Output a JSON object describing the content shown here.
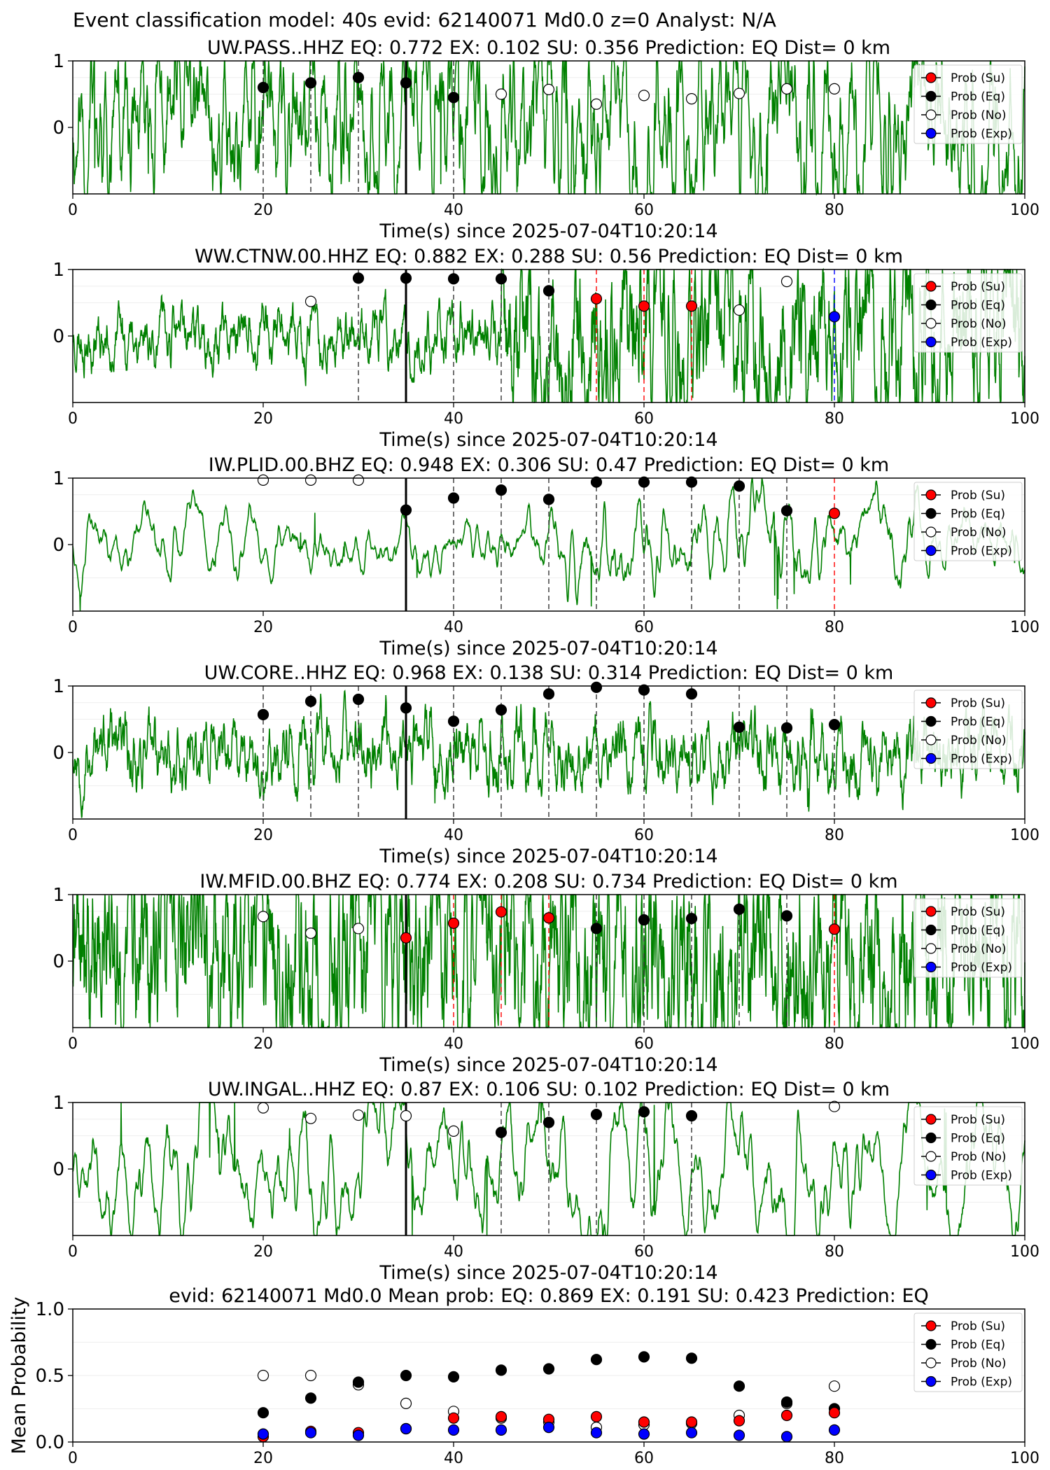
{
  "figure": {
    "suptitle": "Event classification model: 40s evid: 62140071 Md0.0 z=0 Analyst: N/A"
  },
  "legend": {
    "entries": [
      {
        "label": "Prob (Su)",
        "color": "#ff0000",
        "fill": true
      },
      {
        "label": "Prob (Eq)",
        "color": "#000000",
        "fill": true
      },
      {
        "label": "Prob (No)",
        "color": "#ffffff",
        "fill": false
      },
      {
        "label": "Prob (Exp)",
        "color": "#0000ff",
        "fill": true
      }
    ],
    "placement": "top-right"
  },
  "colors": {
    "waveform": "#008000",
    "su": "#ff0000",
    "eq": "#000000",
    "no": "#ffffff",
    "exp": "#0000ff",
    "origin_line": "#000000"
  },
  "chart_data": [
    {
      "type": "line",
      "title": "UW.PASS..HHZ   EQ: 0.772  EX: 0.102  SU: 0.356   Prediction: EQ    Dist= 0 km",
      "xlabel": "Time(s) since 2025-07-04T10:20:14",
      "ylabel": "",
      "xlim": [
        0,
        100
      ],
      "ylim": [
        -1,
        1
      ],
      "xticks": [
        "0",
        "20",
        "40",
        "60",
        "80",
        "100"
      ],
      "yticks": [
        "0",
        "1"
      ],
      "waveform": {
        "seed": 11,
        "base": 0.35,
        "smooth": 0.55,
        "late_amp": 0.55
      },
      "origin_time": 35,
      "points": [
        {
          "x": 20,
          "y": 0.6,
          "cls": "eq",
          "line": "eq"
        },
        {
          "x": 25,
          "y": 0.67,
          "cls": "eq",
          "line": "eq"
        },
        {
          "x": 30,
          "y": 0.75,
          "cls": "eq",
          "line": "eq"
        },
        {
          "x": 35,
          "y": 0.67,
          "cls": "eq",
          "line": "eq"
        },
        {
          "x": 40,
          "y": 0.45,
          "cls": "eq",
          "line": "eq"
        },
        {
          "x": 45,
          "y": 0.5,
          "cls": "no",
          "line": ""
        },
        {
          "x": 50,
          "y": 0.57,
          "cls": "no",
          "line": ""
        },
        {
          "x": 55,
          "y": 0.35,
          "cls": "no",
          "line": ""
        },
        {
          "x": 60,
          "y": 0.48,
          "cls": "no",
          "line": ""
        },
        {
          "x": 65,
          "y": 0.43,
          "cls": "no",
          "line": ""
        },
        {
          "x": 70,
          "y": 0.51,
          "cls": "no",
          "line": ""
        },
        {
          "x": 75,
          "y": 0.58,
          "cls": "no",
          "line": ""
        },
        {
          "x": 80,
          "y": 0.58,
          "cls": "no",
          "line": ""
        }
      ]
    },
    {
      "type": "line",
      "title": "WW.CTNW.00.HHZ   EQ: 0.882  EX: 0.288  SU: 0.56   Prediction: EQ    Dist= 0 km",
      "xlabel": "Time(s) since 2025-07-04T10:20:14",
      "ylabel": "",
      "xlim": [
        0,
        100
      ],
      "ylim": [
        -1,
        1
      ],
      "xticks": [
        "0",
        "20",
        "40",
        "60",
        "80",
        "100"
      ],
      "yticks": [
        "0",
        "1"
      ],
      "waveform": {
        "seed": 23,
        "base": 0.1,
        "smooth": 0.25,
        "late_amp": 0.35
      },
      "origin_time": 35,
      "points": [
        {
          "x": 25,
          "y": 0.52,
          "cls": "no",
          "line": ""
        },
        {
          "x": 30,
          "y": 0.87,
          "cls": "eq",
          "line": "eq"
        },
        {
          "x": 35,
          "y": 0.87,
          "cls": "eq",
          "line": "eq"
        },
        {
          "x": 40,
          "y": 0.86,
          "cls": "eq",
          "line": "eq"
        },
        {
          "x": 45,
          "y": 0.86,
          "cls": "eq",
          "line": "eq"
        },
        {
          "x": 50,
          "y": 0.68,
          "cls": "eq",
          "line": "eq"
        },
        {
          "x": 55,
          "y": 0.56,
          "cls": "su",
          "line": "su"
        },
        {
          "x": 60,
          "y": 0.45,
          "cls": "su",
          "line": "su"
        },
        {
          "x": 65,
          "y": 0.45,
          "cls": "su",
          "line": "su"
        },
        {
          "x": 70,
          "y": 0.39,
          "cls": "no",
          "line": ""
        },
        {
          "x": 75,
          "y": 0.82,
          "cls": "no",
          "line": ""
        },
        {
          "x": 80,
          "y": 0.29,
          "cls": "exp",
          "line": "exp"
        }
      ]
    },
    {
      "type": "line",
      "title": "IW.PLID.00.BHZ   EQ: 0.948  EX: 0.306  SU: 0.47   Prediction: EQ    Dist= 0 km",
      "xlabel": "Time(s) since 2025-07-04T10:20:14",
      "ylabel": "",
      "xlim": [
        0,
        100
      ],
      "ylim": [
        -1,
        1
      ],
      "xticks": [
        "0",
        "20",
        "40",
        "60",
        "80",
        "100"
      ],
      "yticks": [
        "0",
        "1"
      ],
      "waveform": {
        "seed": 37,
        "base": 0.18,
        "smooth": 0.9,
        "late_amp": 0.2
      },
      "origin_time": 35,
      "points": [
        {
          "x": 20,
          "y": 0.97,
          "cls": "no",
          "line": ""
        },
        {
          "x": 25,
          "y": 0.97,
          "cls": "no",
          "line": ""
        },
        {
          "x": 30,
          "y": 0.97,
          "cls": "no",
          "line": ""
        },
        {
          "x": 35,
          "y": 0.52,
          "cls": "eq",
          "line": "eq"
        },
        {
          "x": 40,
          "y": 0.7,
          "cls": "eq",
          "line": "eq"
        },
        {
          "x": 45,
          "y": 0.82,
          "cls": "eq",
          "line": "eq"
        },
        {
          "x": 50,
          "y": 0.68,
          "cls": "eq",
          "line": "eq"
        },
        {
          "x": 55,
          "y": 0.94,
          "cls": "eq",
          "line": "eq"
        },
        {
          "x": 60,
          "y": 0.94,
          "cls": "eq",
          "line": "eq"
        },
        {
          "x": 65,
          "y": 0.94,
          "cls": "eq",
          "line": "eq"
        },
        {
          "x": 70,
          "y": 0.88,
          "cls": "eq",
          "line": "eq"
        },
        {
          "x": 75,
          "y": 0.51,
          "cls": "eq",
          "line": "eq"
        },
        {
          "x": 80,
          "y": 0.47,
          "cls": "su",
          "line": "su"
        }
      ]
    },
    {
      "type": "line",
      "title": "UW.CORE..HHZ   EQ: 0.968  EX: 0.138  SU: 0.314   Prediction: EQ    Dist= 0 km",
      "xlabel": "Time(s) since 2025-07-04T10:20:14",
      "ylabel": "",
      "xlim": [
        0,
        100
      ],
      "ylim": [
        -1,
        1
      ],
      "xticks": [
        "0",
        "20",
        "40",
        "60",
        "80",
        "100"
      ],
      "yticks": [
        "0",
        "1"
      ],
      "waveform": {
        "seed": 53,
        "base": 0.13,
        "smooth": 0.3,
        "late_amp": 0.25
      },
      "origin_time": 35,
      "points": [
        {
          "x": 20,
          "y": 0.57,
          "cls": "eq",
          "line": "eq"
        },
        {
          "x": 25,
          "y": 0.77,
          "cls": "eq",
          "line": "eq"
        },
        {
          "x": 30,
          "y": 0.8,
          "cls": "eq",
          "line": "eq"
        },
        {
          "x": 35,
          "y": 0.67,
          "cls": "eq",
          "line": "eq"
        },
        {
          "x": 40,
          "y": 0.47,
          "cls": "eq",
          "line": "eq"
        },
        {
          "x": 45,
          "y": 0.64,
          "cls": "eq",
          "line": "eq"
        },
        {
          "x": 50,
          "y": 0.88,
          "cls": "eq",
          "line": "eq"
        },
        {
          "x": 55,
          "y": 0.98,
          "cls": "eq",
          "line": "eq"
        },
        {
          "x": 60,
          "y": 0.94,
          "cls": "eq",
          "line": "eq"
        },
        {
          "x": 65,
          "y": 0.88,
          "cls": "eq",
          "line": "eq"
        },
        {
          "x": 70,
          "y": 0.38,
          "cls": "eq",
          "line": "eq"
        },
        {
          "x": 75,
          "y": 0.37,
          "cls": "eq",
          "line": "eq"
        },
        {
          "x": 80,
          "y": 0.42,
          "cls": "eq",
          "line": "eq"
        }
      ]
    },
    {
      "type": "line",
      "title": "IW.MFID.00.BHZ   EQ: 0.774  EX: 0.208  SU: 0.734   Prediction: EQ    Dist= 0 km",
      "xlabel": "Time(s) since 2025-07-04T10:20:14",
      "ylabel": "",
      "xlim": [
        0,
        100
      ],
      "ylim": [
        -1,
        1
      ],
      "xticks": [
        "0",
        "20",
        "40",
        "60",
        "80",
        "100"
      ],
      "yticks": [
        "0",
        "1"
      ],
      "waveform": {
        "seed": 71,
        "base": 0.35,
        "smooth": 0.15,
        "late_amp": 0.3
      },
      "origin_time": 35,
      "points": [
        {
          "x": 20,
          "y": 0.67,
          "cls": "no",
          "line": ""
        },
        {
          "x": 25,
          "y": 0.42,
          "cls": "no",
          "line": ""
        },
        {
          "x": 30,
          "y": 0.49,
          "cls": "no",
          "line": ""
        },
        {
          "x": 35,
          "y": 0.35,
          "cls": "su",
          "line": "su"
        },
        {
          "x": 40,
          "y": 0.57,
          "cls": "su",
          "line": "su"
        },
        {
          "x": 45,
          "y": 0.74,
          "cls": "su",
          "line": "su"
        },
        {
          "x": 50,
          "y": 0.65,
          "cls": "su",
          "line": "su"
        },
        {
          "x": 55,
          "y": 0.49,
          "cls": "eq",
          "line": "eq"
        },
        {
          "x": 60,
          "y": 0.62,
          "cls": "eq",
          "line": "eq"
        },
        {
          "x": 65,
          "y": 0.64,
          "cls": "eq",
          "line": "eq"
        },
        {
          "x": 70,
          "y": 0.78,
          "cls": "eq",
          "line": "eq"
        },
        {
          "x": 75,
          "y": 0.68,
          "cls": "eq",
          "line": "eq"
        },
        {
          "x": 80,
          "y": 0.48,
          "cls": "su",
          "line": "su"
        }
      ]
    },
    {
      "type": "line",
      "title": "UW.INGAL..HHZ   EQ: 0.87  EX: 0.106  SU: 0.102   Prediction: EQ    Dist= 0 km",
      "xlabel": "Time(s) since 2025-07-04T10:20:14",
      "ylabel": "",
      "xlim": [
        0,
        100
      ],
      "ylim": [
        -1,
        1
      ],
      "xticks": [
        "0",
        "20",
        "40",
        "60",
        "80",
        "100"
      ],
      "yticks": [
        "0",
        "1"
      ],
      "waveform": {
        "seed": 89,
        "base": 0.5,
        "smooth": 0.93,
        "late_amp": 0.1
      },
      "origin_time": 35,
      "points": [
        {
          "x": 20,
          "y": 0.92,
          "cls": "no",
          "line": ""
        },
        {
          "x": 25,
          "y": 0.76,
          "cls": "no",
          "line": ""
        },
        {
          "x": 30,
          "y": 0.81,
          "cls": "no",
          "line": ""
        },
        {
          "x": 35,
          "y": 0.8,
          "cls": "no",
          "line": ""
        },
        {
          "x": 40,
          "y": 0.57,
          "cls": "no",
          "line": ""
        },
        {
          "x": 45,
          "y": 0.55,
          "cls": "eq",
          "line": "eq"
        },
        {
          "x": 50,
          "y": 0.7,
          "cls": "eq",
          "line": "eq"
        },
        {
          "x": 55,
          "y": 0.82,
          "cls": "eq",
          "line": "eq"
        },
        {
          "x": 60,
          "y": 0.86,
          "cls": "eq",
          "line": "eq"
        },
        {
          "x": 65,
          "y": 0.8,
          "cls": "eq",
          "line": "eq"
        },
        {
          "x": 80,
          "y": 0.94,
          "cls": "no",
          "line": ""
        }
      ]
    },
    {
      "type": "scatter",
      "title": "evid: 62140071  Md0.0   Mean prob:   EQ: 0.869  EX: 0.191  SU: 0.423   Prediction: EQ",
      "xlabel": "",
      "ylabel": "Mean Probability",
      "xlim": [
        0,
        100
      ],
      "ylim": [
        0,
        1
      ],
      "xticks": [
        "0",
        "20",
        "40",
        "60",
        "80",
        "100"
      ],
      "yticks": [
        "0.0",
        "0.5",
        "1.0"
      ],
      "x": [
        20,
        25,
        30,
        35,
        40,
        45,
        50,
        55,
        60,
        65,
        70,
        75,
        80
      ],
      "series": [
        {
          "name": "Prob (No)",
          "cls": "no",
          "values": [
            0.5,
            0.5,
            0.43,
            0.29,
            0.23,
            0.18,
            0.15,
            0.11,
            0.13,
            0.14,
            0.2,
            0.29,
            0.42
          ]
        },
        {
          "name": "Prob (Eq)",
          "cls": "eq",
          "values": [
            0.22,
            0.33,
            0.45,
            0.5,
            0.49,
            0.54,
            0.55,
            0.62,
            0.64,
            0.63,
            0.42,
            0.3,
            0.25
          ]
        },
        {
          "name": "Prob (Su)",
          "cls": "su",
          "values": [
            0.04,
            0.08,
            0.07,
            0.1,
            0.18,
            0.19,
            0.17,
            0.19,
            0.15,
            0.15,
            0.16,
            0.2,
            0.22
          ]
        },
        {
          "name": "Prob (Exp)",
          "cls": "exp",
          "values": [
            0.06,
            0.07,
            0.05,
            0.1,
            0.09,
            0.09,
            0.11,
            0.07,
            0.06,
            0.07,
            0.05,
            0.04,
            0.09
          ]
        }
      ]
    }
  ]
}
